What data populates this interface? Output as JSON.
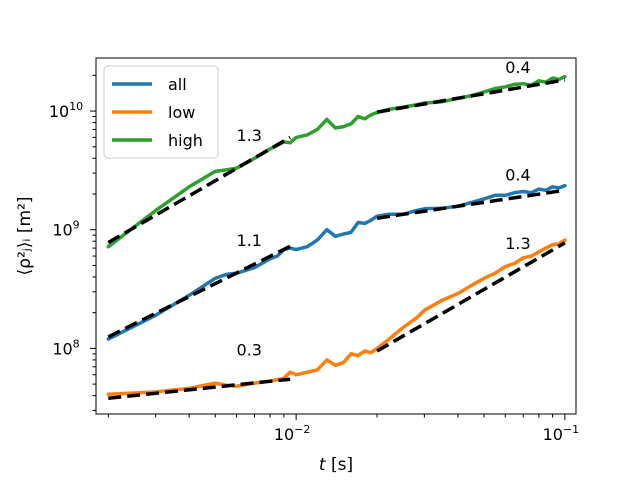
{
  "chart_data": {
    "type": "line",
    "xscale": "log",
    "yscale": "log",
    "xlim": [
      0.0018,
      0.11
    ],
    "ylim": [
      28000000,
      28000000000
    ],
    "xticks": [
      {
        "value": 0.01,
        "base": "10",
        "exp": "−2"
      },
      {
        "value": 0.1,
        "base": "10",
        "exp": "−1"
      }
    ],
    "yticks": [
      {
        "value": 100000000,
        "base": "10",
        "exp": "8"
      },
      {
        "value": 1000000000,
        "base": "10",
        "exp": "9"
      },
      {
        "value": 10000000000,
        "base": "10",
        "exp": "10"
      }
    ],
    "xlabel": {
      "var": "t",
      "unit": "[s]"
    },
    "ylabel": {
      "text": "⟨ρ²ⱼ⟩ᵢ [m²]"
    },
    "legend": {
      "position": "top-left"
    },
    "series": [
      {
        "name": "all",
        "color": "#1f77b4",
        "x": [
          0.002,
          0.003,
          0.004,
          0.005,
          0.0055,
          0.006,
          0.007,
          0.008,
          0.0085,
          0.009,
          0.0095,
          0.01,
          0.011,
          0.012,
          0.013,
          0.014,
          0.015,
          0.016,
          0.017,
          0.018,
          0.019,
          0.02,
          0.022,
          0.025,
          0.028,
          0.03,
          0.035,
          0.04,
          0.045,
          0.05,
          0.055,
          0.06,
          0.065,
          0.07,
          0.075,
          0.08,
          0.085,
          0.09,
          0.095,
          0.1
        ],
        "y": [
          120000000,
          190000000,
          280000000,
          390000000,
          420000000,
          430000000,
          480000000,
          570000000,
          600000000,
          680000000,
          700000000,
          680000000,
          720000000,
          820000000,
          1000000000,
          880000000,
          920000000,
          950000000,
          1150000000,
          1130000000,
          1200000000,
          1300000000,
          1350000000,
          1350000000,
          1450000000,
          1500000000,
          1520000000,
          1580000000,
          1700000000,
          1820000000,
          1950000000,
          1950000000,
          2050000000,
          2100000000,
          2050000000,
          2200000000,
          2150000000,
          2300000000,
          2250000000,
          2350000000
        ]
      },
      {
        "name": "low",
        "color": "#ff7f0e",
        "x": [
          0.002,
          0.003,
          0.004,
          0.005,
          0.0055,
          0.006,
          0.007,
          0.008,
          0.009,
          0.0095,
          0.01,
          0.011,
          0.012,
          0.013,
          0.014,
          0.015,
          0.016,
          0.017,
          0.018,
          0.019,
          0.02,
          0.022,
          0.025,
          0.028,
          0.03,
          0.035,
          0.04,
          0.045,
          0.05,
          0.055,
          0.06,
          0.065,
          0.07,
          0.075,
          0.08,
          0.085,
          0.09,
          0.095,
          0.1
        ],
        "y": [
          41000000,
          43000000,
          46000000,
          51000000,
          49000000,
          48000000,
          51000000,
          53000000,
          56000000,
          63000000,
          60000000,
          63000000,
          66000000,
          80000000,
          72000000,
          76000000,
          90000000,
          87000000,
          95000000,
          92000000,
          100000000,
          118000000,
          150000000,
          180000000,
          210000000,
          255000000,
          290000000,
          340000000,
          390000000,
          430000000,
          490000000,
          520000000,
          580000000,
          600000000,
          650000000,
          700000000,
          750000000,
          760000000,
          820000000
        ]
      },
      {
        "name": "high",
        "color": "#2ca02c",
        "x": [
          0.002,
          0.003,
          0.004,
          0.005,
          0.0055,
          0.006,
          0.007,
          0.008,
          0.009,
          0.0095,
          0.01,
          0.011,
          0.012,
          0.013,
          0.014,
          0.015,
          0.016,
          0.017,
          0.018,
          0.019,
          0.02,
          0.022,
          0.025,
          0.028,
          0.03,
          0.035,
          0.04,
          0.045,
          0.05,
          0.055,
          0.06,
          0.065,
          0.07,
          0.075,
          0.08,
          0.085,
          0.09,
          0.095,
          0.1
        ],
        "y": [
          720000000,
          1450000000,
          2300000000,
          3100000000,
          3200000000,
          3300000000,
          4000000000,
          4800000000,
          5500000000,
          5400000000,
          6000000000,
          6300000000,
          7000000000,
          8500000000,
          7200000000,
          7400000000,
          7800000000,
          9000000000,
          8600000000,
          9300000000,
          9700000000,
          10300000000,
          10800000000,
          11300000000,
          11700000000,
          12000000000,
          12800000000,
          13500000000,
          14500000000,
          15500000000,
          16000000000,
          16800000000,
          17000000000,
          16500000000,
          18000000000,
          17500000000,
          19000000000,
          18500000000,
          19500000000
        ]
      }
    ],
    "fits": [
      {
        "x": [
          0.002,
          0.0095
        ],
        "y": [
          125000000,
          725000000
        ]
      },
      {
        "x": [
          0.02,
          0.1
        ],
        "y": [
          1250000000,
          2150000000
        ]
      },
      {
        "x": [
          0.002,
          0.0095
        ],
        "y": [
          38000000,
          55000000
        ]
      },
      {
        "x": [
          0.02,
          0.1
        ],
        "y": [
          95000000,
          775000000
        ]
      },
      {
        "x": [
          0.002,
          0.0095
        ],
        "y": [
          780000000,
          6000000000
        ]
      },
      {
        "x": [
          0.02,
          0.1
        ],
        "y": [
          9800000000,
          18300000000
        ]
      }
    ],
    "annotations": [
      {
        "text": "1.3",
        "x": 0.006,
        "y": 5600000000
      },
      {
        "text": "1.1",
        "x": 0.006,
        "y": 730000000
      },
      {
        "text": "0.3",
        "x": 0.006,
        "y": 87000000
      },
      {
        "text": "0.4",
        "x": 0.06,
        "y": 21000000000
      },
      {
        "text": "0.4",
        "x": 0.06,
        "y": 2600000000
      },
      {
        "text": "1.3",
        "x": 0.06,
        "y": 690000000
      }
    ]
  }
}
